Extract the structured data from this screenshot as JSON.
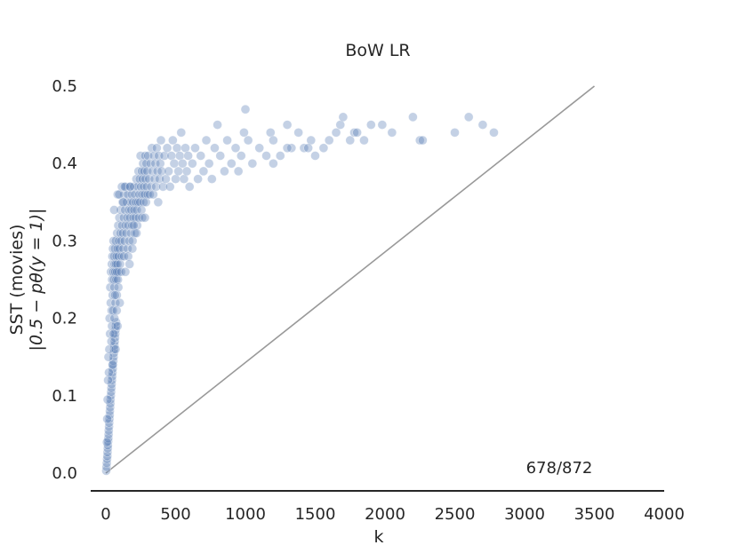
{
  "chart_data": {
    "type": "scatter",
    "title": "BoW LR",
    "xlabel": "k",
    "ylabel_line1": "SST (movies)",
    "ylabel_line2": "|0.5 − pθ(y = 1)|",
    "xlim": [
      -100,
      4000
    ],
    "ylim": [
      -0.02,
      0.5
    ],
    "xticks": [
      0,
      500,
      1000,
      1500,
      2000,
      2500,
      3000,
      3500,
      4000
    ],
    "yticks": [
      0.0,
      0.1,
      0.2,
      0.3,
      0.4,
      0.5
    ],
    "ytick_labels": [
      "0.0",
      "0.1",
      "0.2",
      "0.3",
      "0.4",
      "0.5"
    ],
    "grid": false,
    "annotation": "678/872",
    "reference_line": {
      "x": [
        0,
        3500
      ],
      "y": [
        0.0,
        0.5
      ]
    },
    "colors": {
      "points": "#4c72b0",
      "reference_line": "#999999",
      "axis": "#262626"
    },
    "points": [
      [
        3,
        0.003
      ],
      [
        5,
        0.008
      ],
      [
        7,
        0.013
      ],
      [
        9,
        0.018
      ],
      [
        11,
        0.022
      ],
      [
        12,
        0.027
      ],
      [
        14,
        0.032
      ],
      [
        15,
        0.036
      ],
      [
        17,
        0.041
      ],
      [
        18,
        0.045
      ],
      [
        20,
        0.05
      ],
      [
        21,
        0.055
      ],
      [
        23,
        0.06
      ],
      [
        24,
        0.065
      ],
      [
        26,
        0.07
      ],
      [
        28,
        0.075
      ],
      [
        29,
        0.08
      ],
      [
        31,
        0.085
      ],
      [
        33,
        0.09
      ],
      [
        34,
        0.095
      ],
      [
        36,
        0.1
      ],
      [
        38,
        0.105
      ],
      [
        40,
        0.11
      ],
      [
        42,
        0.115
      ],
      [
        44,
        0.12
      ],
      [
        46,
        0.125
      ],
      [
        48,
        0.13
      ],
      [
        50,
        0.135
      ],
      [
        52,
        0.14
      ],
      [
        54,
        0.145
      ],
      [
        56,
        0.15
      ],
      [
        58,
        0.155
      ],
      [
        60,
        0.16
      ],
      [
        62,
        0.165
      ],
      [
        64,
        0.17
      ],
      [
        66,
        0.175
      ],
      [
        68,
        0.18
      ],
      [
        70,
        0.185
      ],
      [
        72,
        0.19
      ],
      [
        74,
        0.195
      ],
      [
        8,
        0.04
      ],
      [
        10,
        0.07
      ],
      [
        13,
        0.095
      ],
      [
        16,
        0.12
      ],
      [
        19,
        0.15
      ],
      [
        22,
        0.13
      ],
      [
        25,
        0.16
      ],
      [
        27,
        0.2
      ],
      [
        30,
        0.18
      ],
      [
        35,
        0.22
      ],
      [
        32,
        0.24
      ],
      [
        37,
        0.26
      ],
      [
        41,
        0.21
      ],
      [
        43,
        0.27
      ],
      [
        45,
        0.25
      ],
      [
        47,
        0.28
      ],
      [
        49,
        0.23
      ],
      [
        51,
        0.29
      ],
      [
        53,
        0.26
      ],
      [
        55,
        0.3
      ],
      [
        57,
        0.25
      ],
      [
        59,
        0.28
      ],
      [
        61,
        0.24
      ],
      [
        63,
        0.27
      ],
      [
        65,
        0.29
      ],
      [
        67,
        0.26
      ],
      [
        69,
        0.22
      ],
      [
        71,
        0.3
      ],
      [
        73,
        0.27
      ],
      [
        75,
        0.25
      ],
      [
        77,
        0.28
      ],
      [
        79,
        0.23
      ],
      [
        81,
        0.31
      ],
      [
        83,
        0.27
      ],
      [
        85,
        0.29
      ],
      [
        87,
        0.25
      ],
      [
        89,
        0.32
      ],
      [
        91,
        0.28
      ],
      [
        93,
        0.26
      ],
      [
        95,
        0.3
      ],
      [
        97,
        0.33
      ],
      [
        99,
        0.29
      ],
      [
        102,
        0.27
      ],
      [
        105,
        0.31
      ],
      [
        108,
        0.34
      ],
      [
        111,
        0.3
      ],
      [
        114,
        0.28
      ],
      [
        117,
        0.32
      ],
      [
        120,
        0.35
      ],
      [
        123,
        0.31
      ],
      [
        126,
        0.29
      ],
      [
        129,
        0.33
      ],
      [
        132,
        0.36
      ],
      [
        135,
        0.3
      ],
      [
        138,
        0.34
      ],
      [
        141,
        0.32
      ],
      [
        144,
        0.37
      ],
      [
        147,
        0.31
      ],
      [
        150,
        0.35
      ],
      [
        153,
        0.33
      ],
      [
        156,
        0.29
      ],
      [
        159,
        0.36
      ],
      [
        162,
        0.32
      ],
      [
        165,
        0.34
      ],
      [
        168,
        0.3
      ],
      [
        171,
        0.37
      ],
      [
        174,
        0.33
      ],
      [
        177,
        0.35
      ],
      [
        180,
        0.31
      ],
      [
        183,
        0.34
      ],
      [
        186,
        0.36
      ],
      [
        189,
        0.32
      ],
      [
        192,
        0.3
      ],
      [
        195,
        0.35
      ],
      [
        198,
        0.33
      ],
      [
        201,
        0.37
      ],
      [
        204,
        0.34
      ],
      [
        207,
        0.31
      ],
      [
        210,
        0.36
      ],
      [
        213,
        0.33
      ],
      [
        216,
        0.35
      ],
      [
        219,
        0.38
      ],
      [
        222,
        0.34
      ],
      [
        225,
        0.32
      ],
      [
        228,
        0.37
      ],
      [
        231,
        0.35
      ],
      [
        234,
        0.39
      ],
      [
        237,
        0.33
      ],
      [
        240,
        0.36
      ],
      [
        243,
        0.38
      ],
      [
        246,
        0.35
      ],
      [
        249,
        0.41
      ],
      [
        252,
        0.37
      ],
      [
        255,
        0.34
      ],
      [
        258,
        0.39
      ],
      [
        261,
        0.36
      ],
      [
        264,
        0.38
      ],
      [
        267,
        0.4
      ],
      [
        270,
        0.35
      ],
      [
        273,
        0.37
      ],
      [
        276,
        0.39
      ],
      [
        279,
        0.36
      ],
      [
        282,
        0.41
      ],
      [
        285,
        0.38
      ],
      [
        288,
        0.35
      ],
      [
        291,
        0.4
      ],
      [
        294,
        0.37
      ],
      [
        297,
        0.39
      ],
      [
        300,
        0.36
      ],
      [
        303,
        0.41
      ],
      [
        310,
        0.38
      ],
      [
        315,
        0.36
      ],
      [
        320,
        0.4
      ],
      [
        325,
        0.37
      ],
      [
        330,
        0.42
      ],
      [
        335,
        0.39
      ],
      [
        340,
        0.36
      ],
      [
        345,
        0.41
      ],
      [
        350,
        0.38
      ],
      [
        355,
        0.4
      ],
      [
        360,
        0.37
      ],
      [
        365,
        0.42
      ],
      [
        370,
        0.39
      ],
      [
        375,
        0.35
      ],
      [
        380,
        0.41
      ],
      [
        385,
        0.38
      ],
      [
        390,
        0.4
      ],
      [
        395,
        0.43
      ],
      [
        400,
        0.39
      ],
      [
        410,
        0.37
      ],
      [
        420,
        0.41
      ],
      [
        430,
        0.38
      ],
      [
        440,
        0.42
      ],
      [
        450,
        0.39
      ],
      [
        460,
        0.37
      ],
      [
        470,
        0.41
      ],
      [
        480,
        0.43
      ],
      [
        490,
        0.4
      ],
      [
        500,
        0.38
      ],
      [
        510,
        0.42
      ],
      [
        520,
        0.39
      ],
      [
        530,
        0.41
      ],
      [
        540,
        0.44
      ],
      [
        550,
        0.4
      ],
      [
        560,
        0.38
      ],
      [
        570,
        0.42
      ],
      [
        580,
        0.39
      ],
      [
        590,
        0.41
      ],
      [
        600,
        0.37
      ],
      [
        620,
        0.4
      ],
      [
        640,
        0.42
      ],
      [
        660,
        0.38
      ],
      [
        680,
        0.41
      ],
      [
        700,
        0.39
      ],
      [
        720,
        0.43
      ],
      [
        740,
        0.4
      ],
      [
        760,
        0.38
      ],
      [
        780,
        0.42
      ],
      [
        800,
        0.45
      ],
      [
        820,
        0.41
      ],
      [
        850,
        0.39
      ],
      [
        870,
        0.43
      ],
      [
        900,
        0.4
      ],
      [
        930,
        0.42
      ],
      [
        950,
        0.39
      ],
      [
        970,
        0.41
      ],
      [
        990,
        0.44
      ],
      [
        1000,
        0.47
      ],
      [
        1020,
        0.43
      ],
      [
        1050,
        0.4
      ],
      [
        1100,
        0.42
      ],
      [
        1150,
        0.41
      ],
      [
        1180,
        0.44
      ],
      [
        1200,
        0.43
      ],
      [
        1250,
        0.41
      ],
      [
        1300,
        0.45
      ],
      [
        1330,
        0.42
      ],
      [
        1380,
        0.44
      ],
      [
        1420,
        0.42
      ],
      [
        1470,
        0.43
      ],
      [
        1500,
        0.41
      ],
      [
        1560,
        0.42
      ],
      [
        1600,
        0.43
      ],
      [
        1680,
        0.45
      ],
      [
        1700,
        0.46
      ],
      [
        1750,
        0.43
      ],
      [
        1780,
        0.44
      ],
      [
        1800,
        0.44
      ],
      [
        1850,
        0.43
      ],
      [
        1980,
        0.45
      ],
      [
        2050,
        0.44
      ],
      [
        2200,
        0.46
      ],
      [
        2250,
        0.43
      ],
      [
        2270,
        0.43
      ],
      [
        2500,
        0.44
      ],
      [
        2600,
        0.46
      ],
      [
        2700,
        0.45
      ],
      [
        2780,
        0.44
      ],
      [
        60,
        0.34
      ],
      [
        80,
        0.26
      ],
      [
        90,
        0.24
      ],
      [
        100,
        0.22
      ],
      [
        110,
        0.26
      ],
      [
        130,
        0.28
      ],
      [
        140,
        0.26
      ],
      [
        160,
        0.28
      ],
      [
        170,
        0.27
      ],
      [
        190,
        0.29
      ],
      [
        85,
        0.36
      ],
      [
        95,
        0.36
      ],
      [
        115,
        0.37
      ],
      [
        125,
        0.35
      ],
      [
        135,
        0.37
      ],
      [
        175,
        0.37
      ],
      [
        200,
        0.32
      ],
      [
        220,
        0.31
      ],
      [
        260,
        0.33
      ],
      [
        280,
        0.33
      ],
      [
        40,
        0.17
      ],
      [
        44,
        0.19
      ],
      [
        48,
        0.14
      ],
      [
        52,
        0.21
      ],
      [
        56,
        0.18
      ],
      [
        62,
        0.2
      ],
      [
        66,
        0.23
      ],
      [
        70,
        0.16
      ],
      [
        78,
        0.21
      ],
      [
        84,
        0.19
      ],
      [
        1200,
        0.4
      ],
      [
        1300,
        0.42
      ],
      [
        1650,
        0.44
      ],
      [
        1900,
        0.45
      ],
      [
        1450,
        0.42
      ]
    ]
  }
}
